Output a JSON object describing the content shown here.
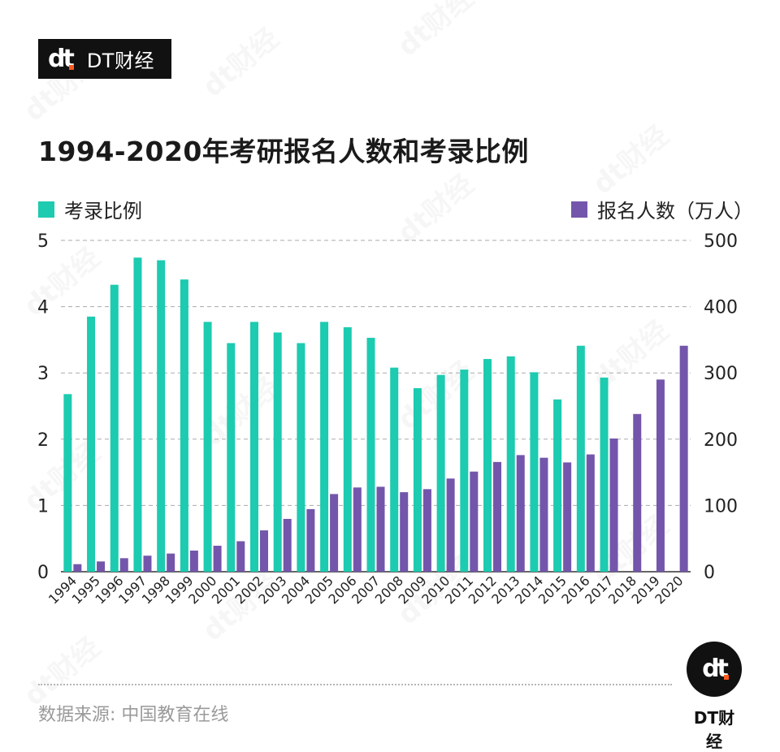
{
  "brand": {
    "logo": "dt",
    "name": "DT财经"
  },
  "watermark": "dt财经",
  "chart_data": {
    "type": "bar",
    "title": "1994-2020年考研报名人数和考录比例",
    "categories": [
      "1994",
      "1995",
      "1996",
      "1997",
      "1998",
      "1999",
      "2000",
      "2001",
      "2002",
      "2003",
      "2004",
      "2005",
      "2006",
      "2007",
      "2008",
      "2009",
      "2010",
      "2011",
      "2012",
      "2013",
      "2014",
      "2015",
      "2016",
      "2017",
      "2018",
      "2019",
      "2020"
    ],
    "series": [
      {
        "name": "考录比例",
        "axis": "left",
        "color": "#1ccbb0",
        "values": [
          2.68,
          3.85,
          4.33,
          4.74,
          4.7,
          4.41,
          3.77,
          3.45,
          3.77,
          3.61,
          3.45,
          3.77,
          3.69,
          3.53,
          3.08,
          2.77,
          2.97,
          3.05,
          3.21,
          3.25,
          3.01,
          2.6,
          3.41,
          2.93,
          null,
          null,
          null
        ]
      },
      {
        "name": "报名人数（万人）",
        "axis": "right",
        "color": "#7356ab",
        "values": [
          11.4,
          15.5,
          20.4,
          24.2,
          27.4,
          31.9,
          39.2,
          46.0,
          62.4,
          79.7,
          94.5,
          117.2,
          127.1,
          128.2,
          120.0,
          124.6,
          140.6,
          151.1,
          165.6,
          176.0,
          172.0,
          164.9,
          177.0,
          201.0,
          238.0,
          290.0,
          341.0
        ]
      }
    ],
    "y_left": {
      "ylim": [
        0,
        5
      ],
      "ticks": [
        "0",
        "1",
        "2",
        "3",
        "4",
        "5"
      ]
    },
    "y_right": {
      "ylim": [
        0,
        500
      ],
      "ticks": [
        "0",
        "100",
        "200",
        "300",
        "400",
        "500"
      ]
    },
    "grid": "dashed horizontal",
    "legend": {
      "left": "考录比例",
      "right": "报名人数（万人）"
    }
  },
  "footer": {
    "source": "数据来源: 中国教育在线",
    "brand": "DT财经"
  }
}
